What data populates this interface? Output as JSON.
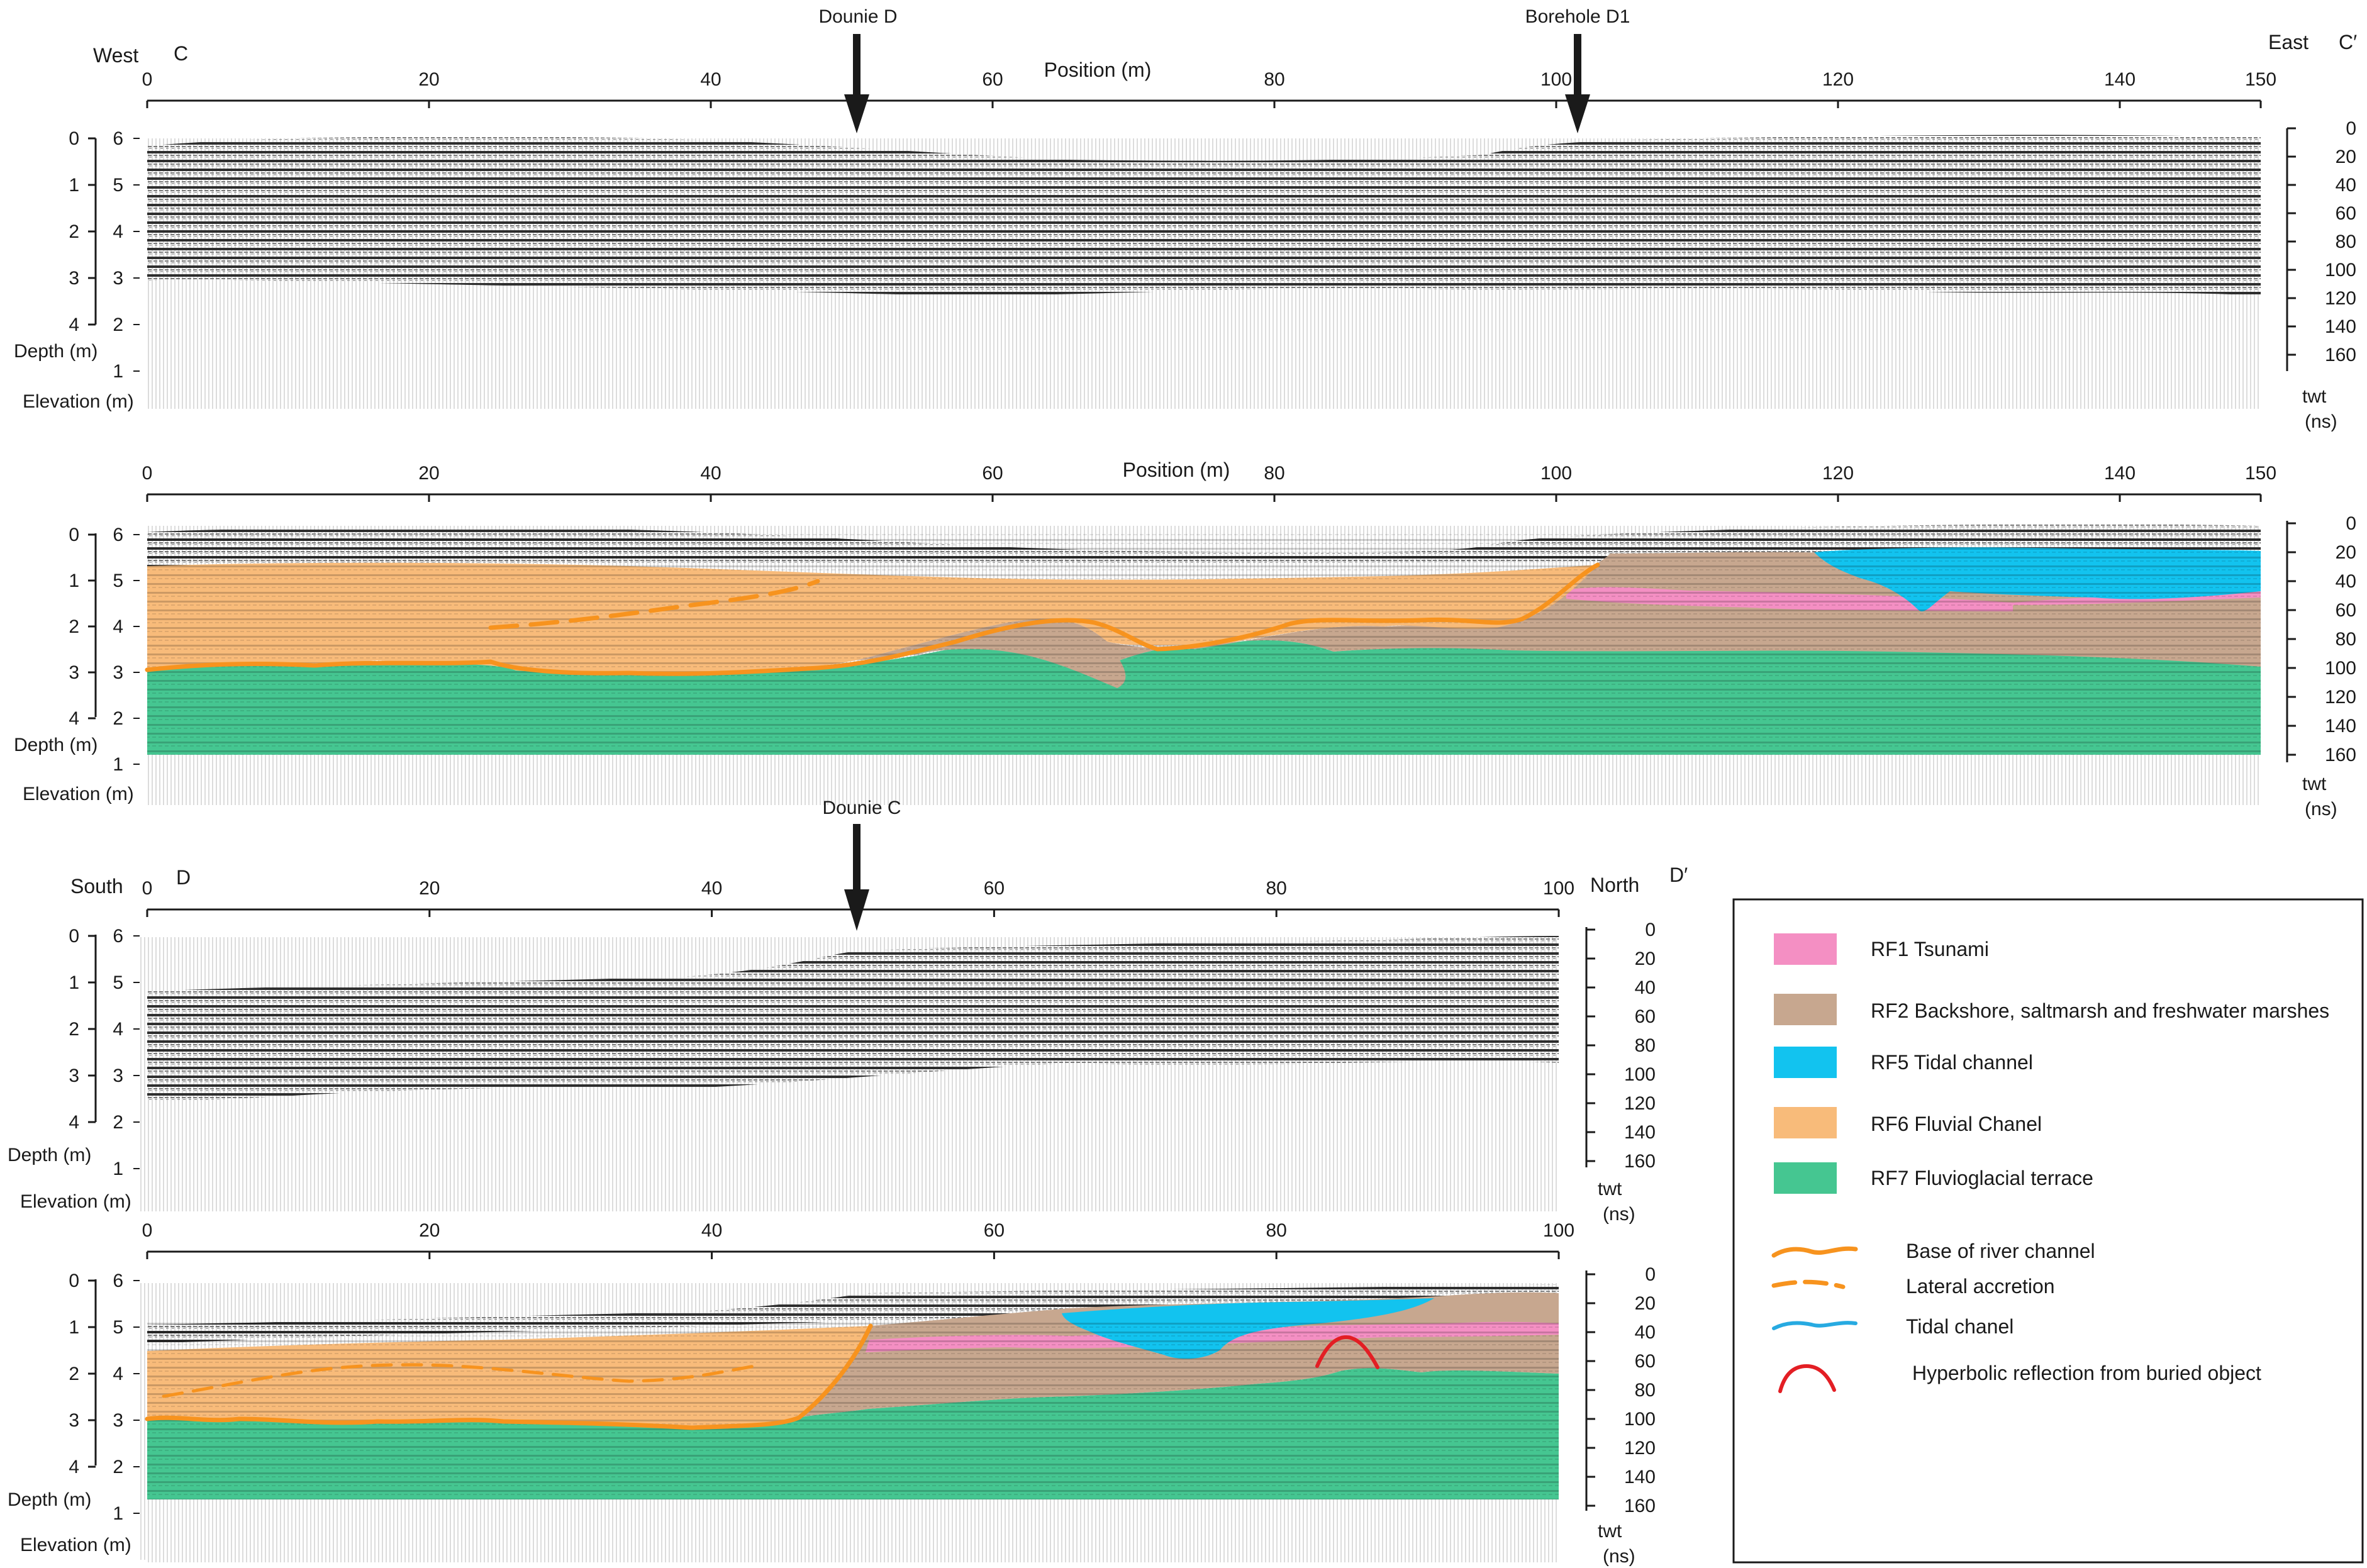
{
  "colors": {
    "rf1": "#f48fc3",
    "rf2": "#c7a78f",
    "rf5": "#12c3ef",
    "rf6": "#f8bb7a",
    "rf7": "#45c691",
    "base_channel": "#f7931e",
    "hyperbola": "#e31e24",
    "tidal_line": "#27aae1"
  },
  "icons": {
    "marker": "down-arrow-icon",
    "base_channel": "solid-orange-wavy-line-icon",
    "lateral": "dashed-orange-line-icon",
    "tidal": "blue-wavy-line-icon",
    "hyperbola": "red-arc-icon"
  },
  "profile_c": {
    "west_label": "West",
    "east_label": "East",
    "start_label": "C",
    "end_label": "C′",
    "markers": [
      {
        "label": "Dounie D",
        "position": 50.5
      },
      {
        "label": "Borehole D1",
        "position": 102
      }
    ],
    "position_range": [
      0,
      150
    ],
    "position_ticks": [
      "0",
      "20",
      "40",
      "60",
      "80",
      "100",
      "120",
      "140",
      "150"
    ],
    "position_title": "Position (m)",
    "raw_position_title": "Position (m)"
  },
  "profile_d": {
    "south_label": "South",
    "north_label": "North",
    "start_label": "D",
    "end_label": "D′",
    "markers": [
      {
        "label": "Dounie C",
        "position": 50.5
      }
    ],
    "position_range": [
      0,
      100
    ],
    "position_ticks": [
      "0",
      "20",
      "40",
      "60",
      "80",
      "100"
    ]
  },
  "axes": {
    "depth_ticks": [
      "0",
      "1",
      "2",
      "3",
      "4"
    ],
    "elevation_ticks": [
      "6",
      "5",
      "4",
      "3",
      "2",
      "1"
    ],
    "twt_ticks": [
      "0",
      "20",
      "40",
      "60",
      "80",
      "100",
      "120",
      "140",
      "160"
    ],
    "depth_label": "Depth (m)",
    "elevation_label": "Elevation (m)",
    "twt_label": "twt",
    "twt_unit": "(ns)"
  },
  "legend": {
    "facies": [
      {
        "key": "rf1",
        "label": "RF1 Tsunami"
      },
      {
        "key": "rf2",
        "label": "RF2 Backshore, saltmarsh and freshwater marshes"
      },
      {
        "key": "rf5",
        "label": "RF5 Tidal channel"
      },
      {
        "key": "rf6",
        "label": "RF6 Fluvial Chanel"
      },
      {
        "key": "rf7",
        "label": "RF7 Fluvioglacial terrace"
      }
    ],
    "lines": [
      {
        "key": "base_channel",
        "label": "Base of river channel"
      },
      {
        "key": "lateral",
        "label": "Lateral accretion"
      },
      {
        "key": "tidal",
        "label": "Tidal chanel"
      },
      {
        "key": "hyperbola",
        "label": "Hyperbolic reflection from buried object"
      }
    ]
  }
}
